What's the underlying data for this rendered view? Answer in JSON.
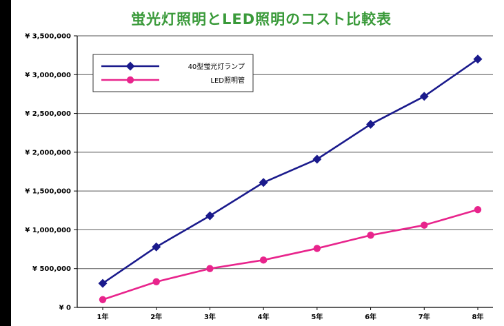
{
  "title": "蛍光灯照明とLED照明のコスト比較表",
  "chart_data": {
    "type": "line",
    "title": "蛍光灯照明とLED照明のコスト比較表",
    "categories": [
      "1年",
      "2年",
      "3年",
      "4年",
      "5年",
      "6年",
      "7年",
      "8年"
    ],
    "ylim": [
      0,
      3500000
    ],
    "yticks": [
      {
        "value": 0,
        "label": "¥ 0"
      },
      {
        "value": 500000,
        "label": "¥ 500,000"
      },
      {
        "value": 1000000,
        "label": "¥ 1,000,000"
      },
      {
        "value": 1500000,
        "label": "¥ 1,500,000"
      },
      {
        "value": 2000000,
        "label": "¥ 2,000,000"
      },
      {
        "value": 2500000,
        "label": "¥ 2,500,000"
      },
      {
        "value": 3000000,
        "label": "¥ 3,000,000"
      },
      {
        "value": 3500000,
        "label": "¥ 3,500,000"
      }
    ],
    "grid": "horizontal",
    "legend_position": "top-left",
    "series": [
      {
        "name": "40型蛍光灯ランプ",
        "color": "#1a1a8c",
        "marker": "diamond",
        "values": [
          310000,
          780000,
          1180000,
          1610000,
          1910000,
          2360000,
          2720000,
          3200000
        ]
      },
      {
        "name": "LED照明管",
        "color": "#e8248c",
        "marker": "circle",
        "values": [
          100000,
          330000,
          500000,
          610000,
          760000,
          930000,
          1060000,
          1260000
        ]
      }
    ]
  }
}
